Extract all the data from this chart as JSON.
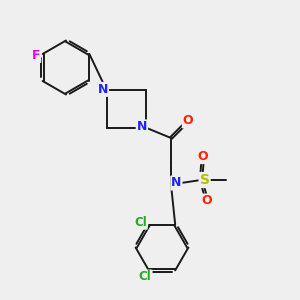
{
  "background_color": "#efefef",
  "bond_color": "#1a1a1a",
  "atom_colors": {
    "N": "#2222ff",
    "O": "#ff2200",
    "F": "#ee00ee",
    "Cl": "#22aa22",
    "S": "#bbbb00",
    "C": "#1a1a1a"
  },
  "figsize": [
    3.0,
    3.0
  ],
  "dpi": 100
}
